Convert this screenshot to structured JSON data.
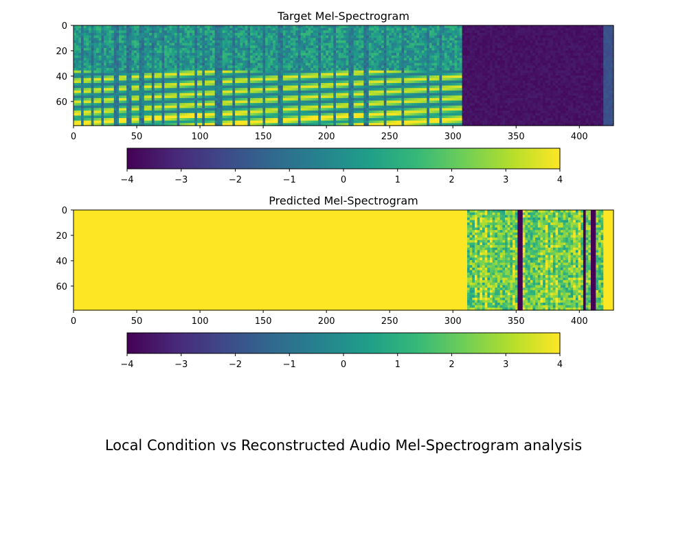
{
  "figure": {
    "suptitle": "Local Condition vs Reconstructed Audio Mel-Spectrogram analysis"
  },
  "colormap": {
    "name": "viridis",
    "stops": [
      "#440154",
      "#482878",
      "#3e4989",
      "#31688e",
      "#26828e",
      "#1f9e89",
      "#35b779",
      "#6ece58",
      "#b5de2b",
      "#fde725"
    ]
  },
  "chart_data": [
    {
      "type": "heatmap",
      "title": "Target Mel-Spectrogram",
      "xlim": [
        0,
        427
      ],
      "ylim": [
        79,
        0
      ],
      "xticks": [
        0,
        50,
        100,
        150,
        200,
        250,
        300,
        350,
        400
      ],
      "yticks": [
        0,
        20,
        40,
        60
      ],
      "vmin": -4,
      "vmax": 4,
      "colorbar": {
        "orientation": "horizontal",
        "ticks": [
          "−4",
          "−3",
          "−2",
          "−1",
          "0",
          "1",
          "2",
          "3",
          "4"
        ]
      },
      "description_of_data": {
        "speech_region_frames": [
          0,
          308
        ],
        "silence_region_frames": [
          308,
          427
        ],
        "silence_value": -3.8,
        "speech_onsets": [
          0,
          8,
          16,
          24,
          35,
          45,
          55,
          63,
          72,
          84,
          97,
          103,
          118,
          127,
          140,
          152,
          165,
          180,
          196,
          208,
          221,
          233,
          248,
          262,
          281,
          292
        ],
        "speech_offsets": [
          6,
          14,
          22,
          32,
          42,
          52,
          61,
          70,
          82,
          95,
          101,
          112,
          125,
          137,
          149,
          162,
          177,
          193,
          205,
          218,
          230,
          245,
          260,
          279,
          289,
          308
        ]
      }
    },
    {
      "type": "heatmap",
      "title": "Predicted Mel-Spectrogram",
      "xlim": [
        0,
        427
      ],
      "ylim": [
        79,
        0
      ],
      "xticks": [
        0,
        50,
        100,
        150,
        200,
        250,
        300,
        350,
        400
      ],
      "yticks": [
        0,
        20,
        40,
        60
      ],
      "vmin": -4,
      "vmax": 4,
      "colorbar": {
        "orientation": "horizontal",
        "ticks": [
          "−4",
          "−3",
          "−2",
          "−1",
          "0",
          "1",
          "2",
          "3",
          "4"
        ]
      },
      "description_of_data": {
        "saturated_region_frames": [
          0,
          312
        ],
        "saturated_value": 4,
        "noisy_region_frames": [
          312,
          420
        ],
        "noisy_value_range": [
          0.5,
          3.5
        ],
        "dark_stripe_frames": [
          [
            352,
            355
          ],
          [
            403,
            405
          ],
          [
            409,
            413
          ]
        ],
        "dark_stripe_value": -4,
        "tail_region_frames": [
          420,
          427
        ],
        "tail_value": 4
      }
    }
  ]
}
